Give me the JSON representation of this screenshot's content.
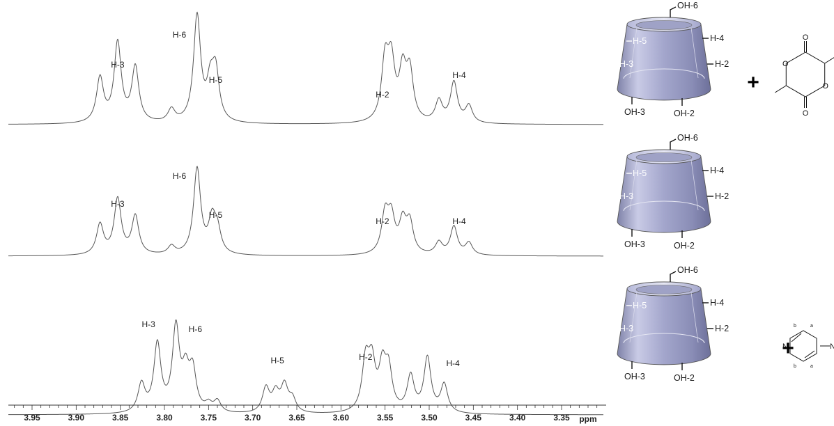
{
  "chart_data": {
    "type": "line",
    "x_axis": {
      "reversed": true,
      "xlim": [
        3.97,
        3.32
      ],
      "ticks": [
        "3.95",
        "3.90",
        "3.85",
        "3.80",
        "3.75",
        "3.70",
        "3.65",
        "3.60",
        "3.55",
        "3.50",
        "3.45",
        "3.40",
        "3.35"
      ],
      "unit": "ppm"
    },
    "grid": false,
    "legend": "none",
    "series": [
      {
        "peaks": [
          {
            "x": 3.873,
            "h": 0.42
          },
          {
            "x": 3.853,
            "h": 0.75
          },
          {
            "x": 3.833,
            "h": 0.52
          },
          {
            "x": 3.792,
            "h": 0.12
          },
          {
            "x": 3.763,
            "h": 1.0
          },
          {
            "x": 3.748,
            "h": 0.32
          },
          {
            "x": 3.742,
            "h": 0.45
          },
          {
            "x": 3.55,
            "h": 0.55
          },
          {
            "x": 3.543,
            "h": 0.52
          },
          {
            "x": 3.53,
            "h": 0.45
          },
          {
            "x": 3.522,
            "h": 0.45
          },
          {
            "x": 3.489,
            "h": 0.2
          },
          {
            "x": 3.472,
            "h": 0.38
          },
          {
            "x": 3.455,
            "h": 0.16
          }
        ],
        "labels": [
          {
            "text": "H-3",
            "x": 3.853
          },
          {
            "text": "H-6",
            "x": 3.783
          },
          {
            "text": "H-5",
            "x": 3.742
          },
          {
            "text": "H-2",
            "x": 3.553
          },
          {
            "text": "H-4",
            "x": 3.466
          }
        ]
      },
      {
        "peaks": [
          {
            "x": 3.873,
            "h": 0.3
          },
          {
            "x": 3.853,
            "h": 0.55
          },
          {
            "x": 3.833,
            "h": 0.38
          },
          {
            "x": 3.792,
            "h": 0.08
          },
          {
            "x": 3.763,
            "h": 0.85
          },
          {
            "x": 3.746,
            "h": 0.32
          },
          {
            "x": 3.74,
            "h": 0.22
          },
          {
            "x": 3.55,
            "h": 0.38
          },
          {
            "x": 3.543,
            "h": 0.34
          },
          {
            "x": 3.53,
            "h": 0.3
          },
          {
            "x": 3.522,
            "h": 0.3
          },
          {
            "x": 3.489,
            "h": 0.12
          },
          {
            "x": 3.472,
            "h": 0.28
          },
          {
            "x": 3.455,
            "h": 0.12
          }
        ],
        "labels": [
          {
            "text": "H-3",
            "x": 3.853
          },
          {
            "text": "H-6",
            "x": 3.783
          },
          {
            "text": "H-5",
            "x": 3.742
          },
          {
            "text": "H-2",
            "x": 3.553
          },
          {
            "text": "H-4",
            "x": 3.466
          }
        ]
      },
      {
        "peaks": [
          {
            "x": 3.826,
            "h": 0.3
          },
          {
            "x": 3.808,
            "h": 0.72
          },
          {
            "x": 3.787,
            "h": 0.88
          },
          {
            "x": 3.776,
            "h": 0.38
          },
          {
            "x": 3.768,
            "h": 0.42
          },
          {
            "x": 3.75,
            "h": 0.08
          },
          {
            "x": 3.74,
            "h": 0.12
          },
          {
            "x": 3.685,
            "h": 0.26
          },
          {
            "x": 3.674,
            "h": 0.2
          },
          {
            "x": 3.664,
            "h": 0.28
          },
          {
            "x": 3.655,
            "h": 0.14
          },
          {
            "x": 3.572,
            "h": 0.52
          },
          {
            "x": 3.565,
            "h": 0.48
          },
          {
            "x": 3.553,
            "h": 0.44
          },
          {
            "x": 3.546,
            "h": 0.42
          },
          {
            "x": 3.521,
            "h": 0.38
          },
          {
            "x": 3.502,
            "h": 0.58
          },
          {
            "x": 3.483,
            "h": 0.3
          }
        ],
        "labels": [
          {
            "text": "H-3",
            "x": 3.818
          },
          {
            "text": "H-6",
            "x": 3.765
          },
          {
            "text": "H-5",
            "x": 3.672
          },
          {
            "text": "H-2",
            "x": 3.572
          },
          {
            "text": "H-4",
            "x": 3.473
          }
        ]
      }
    ]
  },
  "cyclodextrin_labels": {
    "top": "OH-6",
    "inner_upper": "H-5",
    "inner_lower": "H-3",
    "outer_upper": "H-4",
    "outer_lower": "H-2",
    "bottom_left": "OH-3",
    "bottom_right": "OH-2"
  },
  "guests": {
    "plus": "+",
    "lactide_atoms": [
      "O",
      "O",
      "O",
      "O"
    ],
    "dmap_atoms": [
      "N",
      "N"
    ],
    "dmap_positions": [
      "a",
      "b",
      "a",
      "b"
    ]
  }
}
